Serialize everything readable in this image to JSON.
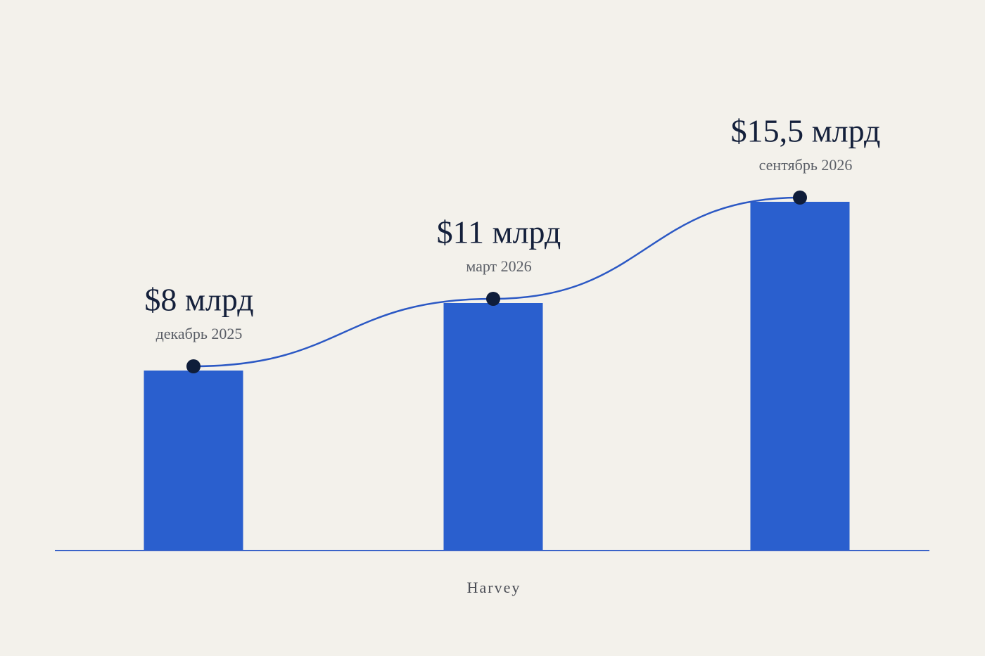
{
  "chart_data": {
    "type": "bar",
    "categories": [
      "декабрь 2025",
      "март 2026",
      "сентябрь 2026"
    ],
    "values": [
      8,
      11,
      15.5
    ],
    "value_labels": [
      "$8 млрд",
      "$11 млрд",
      "$15,5 млрд"
    ],
    "color": "#2a5fce",
    "line": true,
    "line_color": "#2b58c4",
    "marker_color": "#0f1d3a",
    "ylim": [
      0,
      20
    ],
    "caption": "Harvey"
  }
}
